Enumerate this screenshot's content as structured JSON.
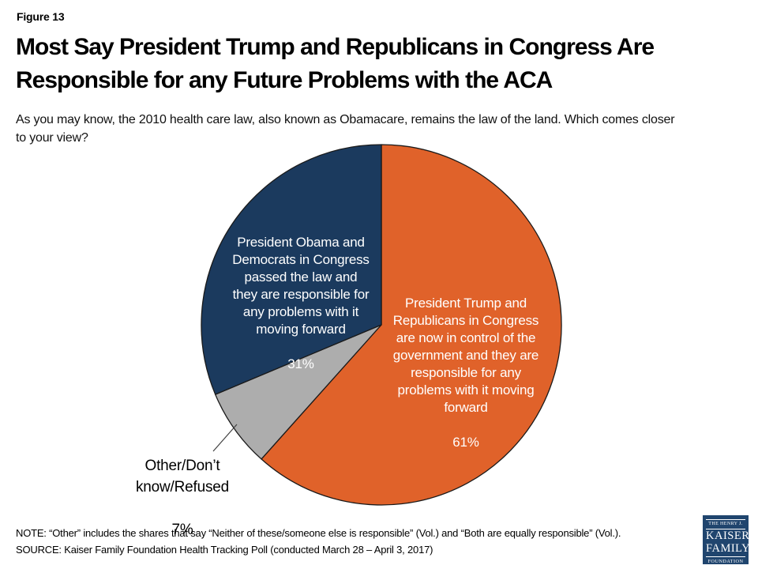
{
  "figure_label": "Figure 13",
  "title": "Most Say President Trump and Republicans in Congress Are\nResponsible for any Future Problems with the ACA",
  "subtitle": "As you may know, the 2010 health care law, also known as Obamacare, remains the law of the land. Which comes closer\nto your view?",
  "chart_data": {
    "type": "pie",
    "start_angle_deg": 0,
    "direction": "clockwise",
    "background": "#FFFFFF",
    "outline_color": "#1A1A1A",
    "slices": [
      {
        "name": "trump-republicans",
        "label": "President Trump and Republicans in Congress are now in control of the government and they are responsible for any problems with it moving forward",
        "label_wrapped": "President Trump and\nRepublicans in Congress\nare now in control of the\ngovernment and they are\nresponsible for any\nproblems with it moving\nforward",
        "pct": 61,
        "pct_label": "61%",
        "color": "#E0622A",
        "label_color": "#FFFFFF",
        "label_position": "inside"
      },
      {
        "name": "other-dont-know-refused",
        "label": "Other/Don’t know/Refused",
        "label_wrapped": "Other/Don’t\nknow/Refused",
        "pct": 7,
        "pct_label": "7%",
        "color": "#ADADAD",
        "label_color": "#000000",
        "label_position": "outside-left-with-leader-line"
      },
      {
        "name": "obama-democrats",
        "label": "President Obama and Democrats in Congress passed the law and they are responsible for any problems with it moving forward",
        "label_wrapped": "President Obama and\nDemocrats in Congress\npassed the law and\nthey are responsible for\nany problems with it\nmoving forward",
        "pct": 31,
        "pct_label": "31%",
        "color": "#1B3A5E",
        "label_color": "#FFFFFF",
        "label_position": "inside"
      }
    ]
  },
  "note": "NOTE: “Other” includes the shares that say “Neither of these/someone else is responsible” (Vol.) and “Both are equally responsible” (Vol.).",
  "source": "SOURCE: Kaiser Family Foundation Health Tracking Poll (conducted March 28 – April 3, 2017)",
  "logo": {
    "line1": "THE HENRY J.",
    "line2": "KAISER",
    "line3": "FAMILY",
    "line4": "FOUNDATION"
  }
}
